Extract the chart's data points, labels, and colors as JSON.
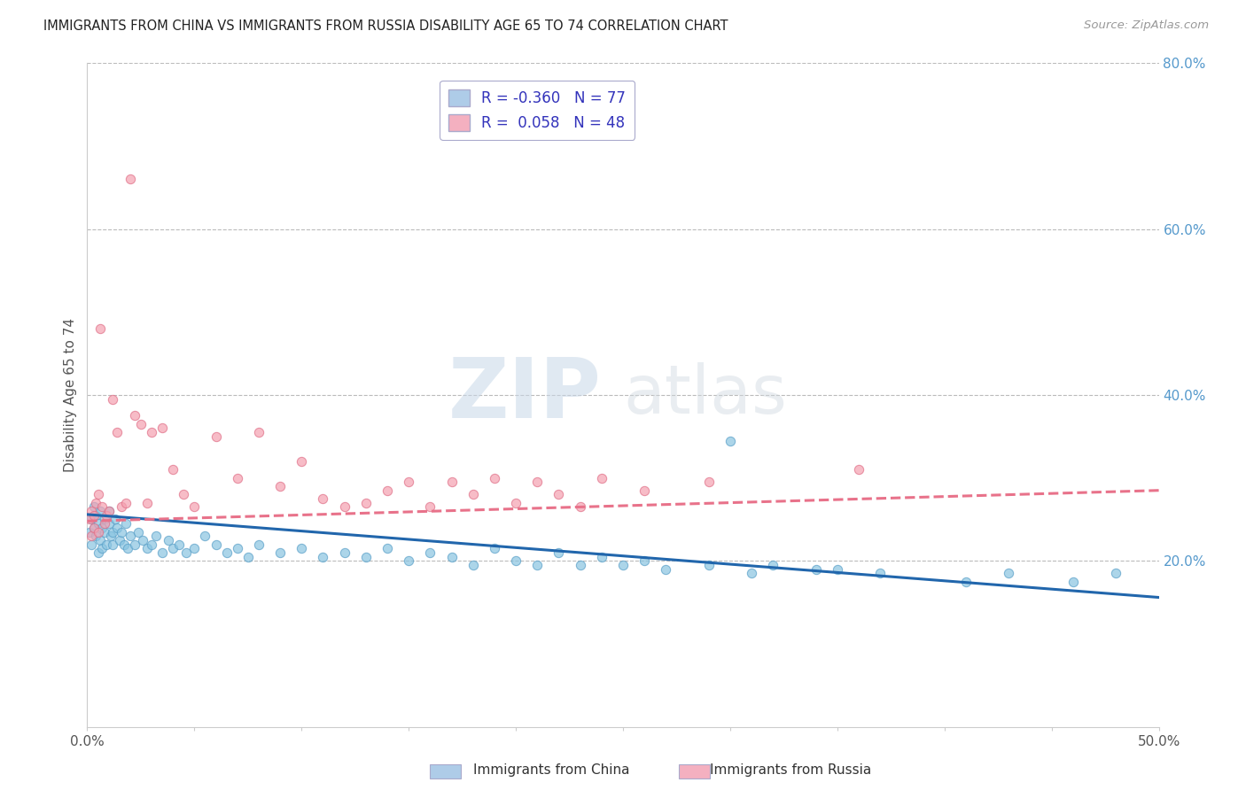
{
  "title": "IMMIGRANTS FROM CHINA VS IMMIGRANTS FROM RUSSIA DISABILITY AGE 65 TO 74 CORRELATION CHART",
  "source": "Source: ZipAtlas.com",
  "ylabel": "Disability Age 65 to 74",
  "xlim": [
    0.0,
    0.5
  ],
  "ylim": [
    0.0,
    0.8
  ],
  "xticks": [
    0.0,
    0.05,
    0.1,
    0.15,
    0.2,
    0.25,
    0.3,
    0.35,
    0.4,
    0.45,
    0.5
  ],
  "xtick_labels_show": [
    "0.0%",
    "",
    "",
    "",
    "",
    "",
    "",
    "",
    "",
    "",
    "50.0%"
  ],
  "yticks_right": [
    0.2,
    0.4,
    0.6,
    0.8
  ],
  "ytick_labels_right": [
    "20.0%",
    "40.0%",
    "60.0%",
    "80.0%"
  ],
  "china_color": "#89c4e1",
  "china_edge_color": "#5aa0c8",
  "russia_color": "#f4a0b0",
  "russia_edge_color": "#e07088",
  "china_trendline_color": "#2166ac",
  "russia_trendline_color": "#e8728a",
  "legend_box_china": "#aecce8",
  "legend_box_russia": "#f4b0c0",
  "legend_text_color": "#3333bb",
  "watermark_zip": "ZIP",
  "watermark_atlas": "atlas",
  "background_color": "#ffffff",
  "grid_color": "#bbbbbb",
  "china_scatter_x": [
    0.001,
    0.002,
    0.002,
    0.003,
    0.003,
    0.004,
    0.004,
    0.005,
    0.005,
    0.006,
    0.006,
    0.007,
    0.007,
    0.008,
    0.008,
    0.009,
    0.01,
    0.01,
    0.011,
    0.012,
    0.012,
    0.013,
    0.014,
    0.015,
    0.016,
    0.017,
    0.018,
    0.019,
    0.02,
    0.022,
    0.024,
    0.026,
    0.028,
    0.03,
    0.032,
    0.035,
    0.038,
    0.04,
    0.043,
    0.046,
    0.05,
    0.055,
    0.06,
    0.065,
    0.07,
    0.075,
    0.08,
    0.09,
    0.1,
    0.11,
    0.12,
    0.13,
    0.14,
    0.15,
    0.16,
    0.17,
    0.18,
    0.19,
    0.2,
    0.21,
    0.22,
    0.23,
    0.24,
    0.25,
    0.26,
    0.27,
    0.29,
    0.31,
    0.32,
    0.34,
    0.37,
    0.41,
    0.43,
    0.46,
    0.48,
    0.3,
    0.35
  ],
  "china_scatter_y": [
    0.235,
    0.25,
    0.22,
    0.24,
    0.265,
    0.23,
    0.255,
    0.245,
    0.21,
    0.26,
    0.225,
    0.24,
    0.215,
    0.25,
    0.235,
    0.22,
    0.245,
    0.26,
    0.23,
    0.235,
    0.22,
    0.25,
    0.24,
    0.225,
    0.235,
    0.22,
    0.245,
    0.215,
    0.23,
    0.22,
    0.235,
    0.225,
    0.215,
    0.22,
    0.23,
    0.21,
    0.225,
    0.215,
    0.22,
    0.21,
    0.215,
    0.23,
    0.22,
    0.21,
    0.215,
    0.205,
    0.22,
    0.21,
    0.215,
    0.205,
    0.21,
    0.205,
    0.215,
    0.2,
    0.21,
    0.205,
    0.195,
    0.215,
    0.2,
    0.195,
    0.21,
    0.195,
    0.205,
    0.195,
    0.2,
    0.19,
    0.195,
    0.185,
    0.195,
    0.19,
    0.185,
    0.175,
    0.185,
    0.175,
    0.185,
    0.345,
    0.19
  ],
  "russia_scatter_x": [
    0.001,
    0.002,
    0.002,
    0.003,
    0.003,
    0.004,
    0.005,
    0.005,
    0.006,
    0.007,
    0.008,
    0.009,
    0.01,
    0.012,
    0.014,
    0.016,
    0.018,
    0.02,
    0.022,
    0.025,
    0.028,
    0.03,
    0.035,
    0.04,
    0.045,
    0.05,
    0.06,
    0.07,
    0.08,
    0.09,
    0.1,
    0.11,
    0.12,
    0.13,
    0.14,
    0.15,
    0.16,
    0.17,
    0.18,
    0.19,
    0.2,
    0.21,
    0.22,
    0.23,
    0.24,
    0.26,
    0.29,
    0.36
  ],
  "russia_scatter_y": [
    0.25,
    0.26,
    0.23,
    0.24,
    0.255,
    0.27,
    0.28,
    0.235,
    0.48,
    0.265,
    0.245,
    0.255,
    0.26,
    0.395,
    0.355,
    0.265,
    0.27,
    0.66,
    0.375,
    0.365,
    0.27,
    0.355,
    0.36,
    0.31,
    0.28,
    0.265,
    0.35,
    0.3,
    0.355,
    0.29,
    0.32,
    0.275,
    0.265,
    0.27,
    0.285,
    0.295,
    0.265,
    0.295,
    0.28,
    0.3,
    0.27,
    0.295,
    0.28,
    0.265,
    0.3,
    0.285,
    0.295,
    0.31
  ]
}
